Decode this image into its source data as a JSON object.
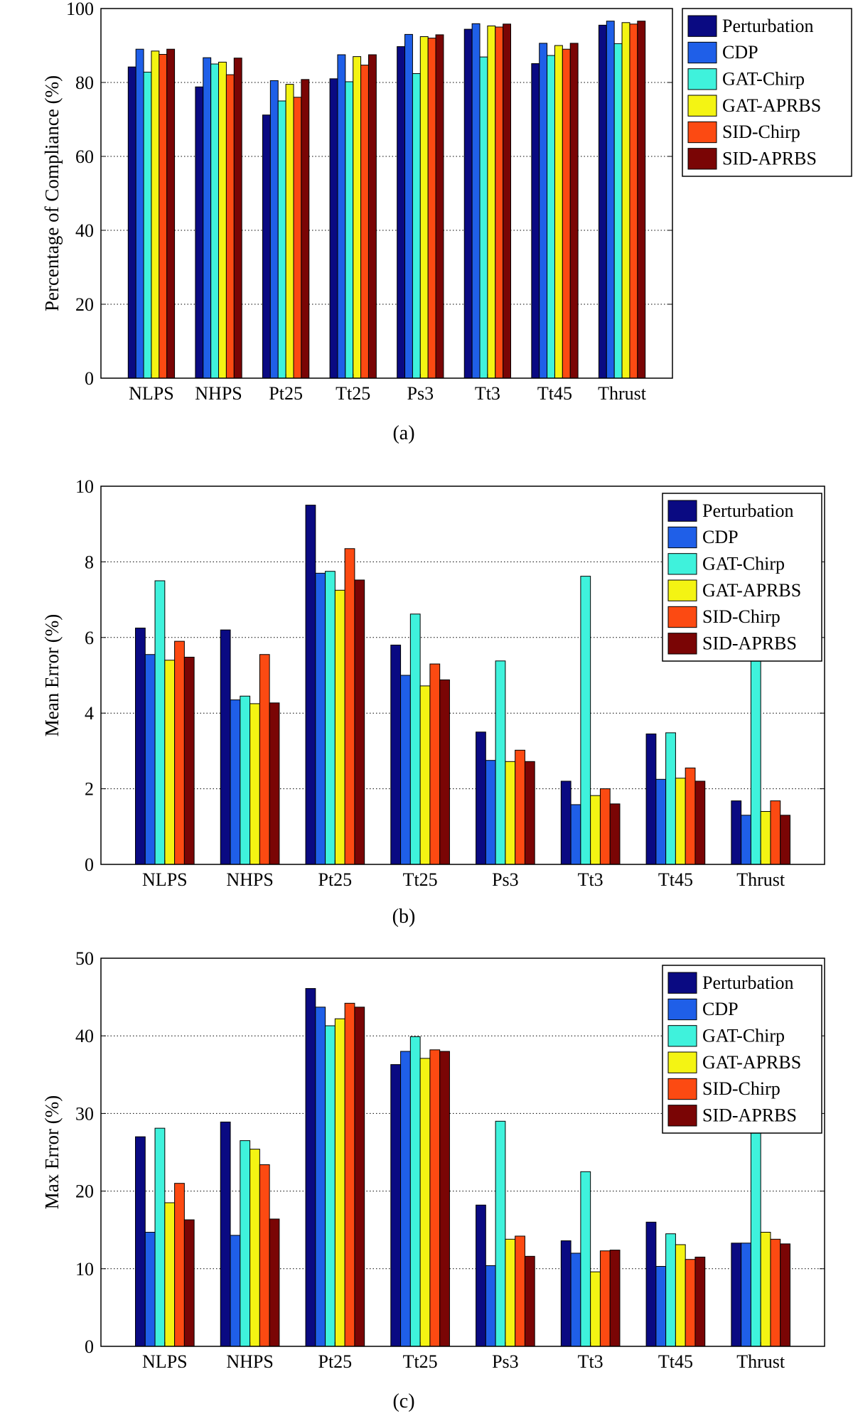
{
  "series_colors": [
    "#0a0a82",
    "#1f5fe8",
    "#3ff2dc",
    "#f4f413",
    "#fc4a12",
    "#7a0505"
  ],
  "chart_data": [
    {
      "type": "bar",
      "caption": "(a)",
      "ylabel": "Percentage of Compliance (%)",
      "xlabel": "",
      "ylim": [
        0,
        100
      ],
      "yticks": [
        0,
        20,
        40,
        60,
        80,
        100
      ],
      "grid": "horizontal dotted",
      "legend_position": "outside-right",
      "categories": [
        "NLPS",
        "NHPS",
        "Pt25",
        "Tt25",
        "Ps3",
        "Tt3",
        "Tt45",
        "Thrust"
      ],
      "series": [
        {
          "name": "Perturbation",
          "values": [
            84.2,
            78.8,
            71.2,
            81.0,
            89.7,
            94.4,
            85.1,
            95.5
          ]
        },
        {
          "name": "CDP",
          "values": [
            89.0,
            86.7,
            80.5,
            87.5,
            93.0,
            95.9,
            90.6,
            96.6
          ]
        },
        {
          "name": "GAT-Chirp",
          "values": [
            82.8,
            85.0,
            75.0,
            80.2,
            82.4,
            86.9,
            87.3,
            90.5
          ]
        },
        {
          "name": "GAT-APRBS",
          "values": [
            88.5,
            85.5,
            79.5,
            87.0,
            92.4,
            95.3,
            90.0,
            96.2
          ]
        },
        {
          "name": "SID-Chirp",
          "values": [
            87.6,
            82.1,
            76.0,
            84.7,
            92.0,
            95.0,
            89.0,
            95.8
          ]
        },
        {
          "name": "SID-APRBS",
          "values": [
            89.0,
            86.6,
            80.8,
            87.5,
            92.9,
            95.8,
            90.6,
            96.6
          ]
        }
      ]
    },
    {
      "type": "bar",
      "caption": "(b)",
      "ylabel": "Mean Error (%)",
      "xlabel": "",
      "ylim": [
        0,
        10
      ],
      "yticks": [
        0,
        2,
        4,
        6,
        8,
        10
      ],
      "grid": "horizontal dotted",
      "legend_position": "top-right",
      "categories": [
        "NLPS",
        "NHPS",
        "Pt25",
        "Tt25",
        "Ps3",
        "Tt3",
        "Tt45",
        "Thrust"
      ],
      "series": [
        {
          "name": "Perturbation",
          "values": [
            6.25,
            6.2,
            9.5,
            5.8,
            3.5,
            2.2,
            3.45,
            1.68
          ]
        },
        {
          "name": "CDP",
          "values": [
            5.55,
            4.35,
            7.7,
            5.0,
            2.75,
            1.58,
            2.25,
            1.3
          ]
        },
        {
          "name": "GAT-Chirp",
          "values": [
            7.5,
            4.45,
            7.75,
            6.62,
            5.38,
            7.62,
            3.48,
            5.6
          ]
        },
        {
          "name": "GAT-APRBS",
          "values": [
            5.4,
            4.25,
            7.25,
            4.72,
            2.72,
            1.82,
            2.28,
            1.4
          ]
        },
        {
          "name": "SID-Chirp",
          "values": [
            5.9,
            5.55,
            8.35,
            5.3,
            3.02,
            2.0,
            2.55,
            1.68
          ]
        },
        {
          "name": "SID-APRBS",
          "values": [
            5.48,
            4.27,
            7.52,
            4.88,
            2.72,
            1.6,
            2.2,
            1.3
          ]
        }
      ]
    },
    {
      "type": "bar",
      "caption": "(c)",
      "ylabel": "Max Error (%)",
      "xlabel": "",
      "ylim": [
        0,
        50
      ],
      "yticks": [
        0,
        10,
        20,
        30,
        40,
        50
      ],
      "grid": "horizontal dotted",
      "legend_position": "top-right",
      "categories": [
        "NLPS",
        "NHPS",
        "Pt25",
        "Tt25",
        "Ps3",
        "Tt3",
        "Tt45",
        "Thrust"
      ],
      "series": [
        {
          "name": "Perturbation",
          "values": [
            27.0,
            28.9,
            46.1,
            36.3,
            18.2,
            13.6,
            16.0,
            13.3
          ]
        },
        {
          "name": "CDP",
          "values": [
            14.7,
            14.3,
            43.7,
            38.0,
            10.4,
            12.0,
            10.3,
            13.3
          ]
        },
        {
          "name": "GAT-Chirp",
          "values": [
            28.1,
            26.5,
            41.3,
            39.9,
            29.0,
            22.5,
            14.5,
            28.5
          ]
        },
        {
          "name": "GAT-APRBS",
          "values": [
            18.5,
            25.4,
            42.2,
            37.1,
            13.8,
            9.6,
            13.1,
            14.7
          ]
        },
        {
          "name": "SID-Chirp",
          "values": [
            21.0,
            23.4,
            44.2,
            38.2,
            14.2,
            12.3,
            11.2,
            13.8
          ]
        },
        {
          "name": "SID-APRBS",
          "values": [
            16.3,
            16.4,
            43.7,
            38.0,
            11.6,
            12.4,
            11.5,
            13.2
          ]
        }
      ]
    }
  ]
}
